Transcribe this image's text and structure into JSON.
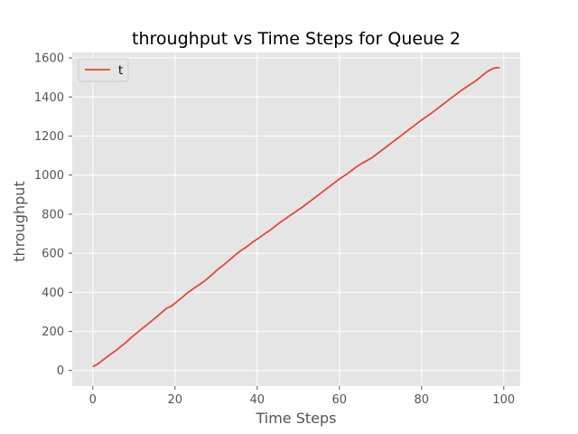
{
  "chart_data": {
    "type": "line",
    "title": "throughput vs Time Steps for Queue 2",
    "xlabel": "Time Steps",
    "ylabel": "throughput",
    "xlim": [
      -5,
      104
    ],
    "ylim": [
      -80,
      1628
    ],
    "x_ticks": [
      0,
      20,
      40,
      60,
      80,
      100
    ],
    "y_ticks": [
      0,
      200,
      400,
      600,
      800,
      1000,
      1200,
      1400,
      1600
    ],
    "grid": true,
    "legend_position": "top-left",
    "series": [
      {
        "name": "t",
        "color": "#e24a33",
        "x": [
          0,
          1,
          2,
          3,
          4,
          5,
          6,
          7,
          8,
          9,
          10,
          11,
          12,
          13,
          14,
          15,
          16,
          17,
          18,
          19,
          20,
          21,
          22,
          23,
          24,
          25,
          26,
          27,
          28,
          29,
          30,
          31,
          32,
          33,
          34,
          35,
          36,
          37,
          38,
          39,
          40,
          41,
          42,
          43,
          44,
          45,
          46,
          47,
          48,
          49,
          50,
          51,
          52,
          53,
          54,
          55,
          56,
          57,
          58,
          59,
          60,
          61,
          62,
          63,
          64,
          65,
          66,
          67,
          68,
          69,
          70,
          71,
          72,
          73,
          74,
          75,
          76,
          77,
          78,
          79,
          80,
          81,
          82,
          83,
          84,
          85,
          86,
          87,
          88,
          89,
          90,
          91,
          92,
          93,
          94,
          95,
          96,
          97,
          98,
          99
        ],
        "values": [
          20,
          30,
          46,
          62,
          78,
          93,
          108,
          126,
          142,
          162,
          180,
          197,
          214,
          231,
          248,
          265,
          283,
          301,
          319,
          328,
          344,
          361,
          378,
          397,
          412,
          427,
          440,
          455,
          472,
          490,
          510,
          527,
          543,
          561,
          579,
          597,
          613,
          627,
          642,
          659,
          672,
          687,
          702,
          716,
          732,
          749,
          764,
          778,
          794,
          807,
          822,
          836,
          852,
          868,
          884,
          900,
          916,
          932,
          948,
          964,
          980,
          994,
          1008,
          1024,
          1040,
          1054,
          1066,
          1078,
          1090,
          1106,
          1122,
          1138,
          1154,
          1170,
          1186,
          1202,
          1218,
          1234,
          1250,
          1266,
          1282,
          1297,
          1311,
          1327,
          1343,
          1359,
          1375,
          1391,
          1407,
          1423,
          1438,
          1452,
          1466,
          1480,
          1496,
          1514,
          1530,
          1542,
          1550,
          1550
        ]
      }
    ]
  }
}
